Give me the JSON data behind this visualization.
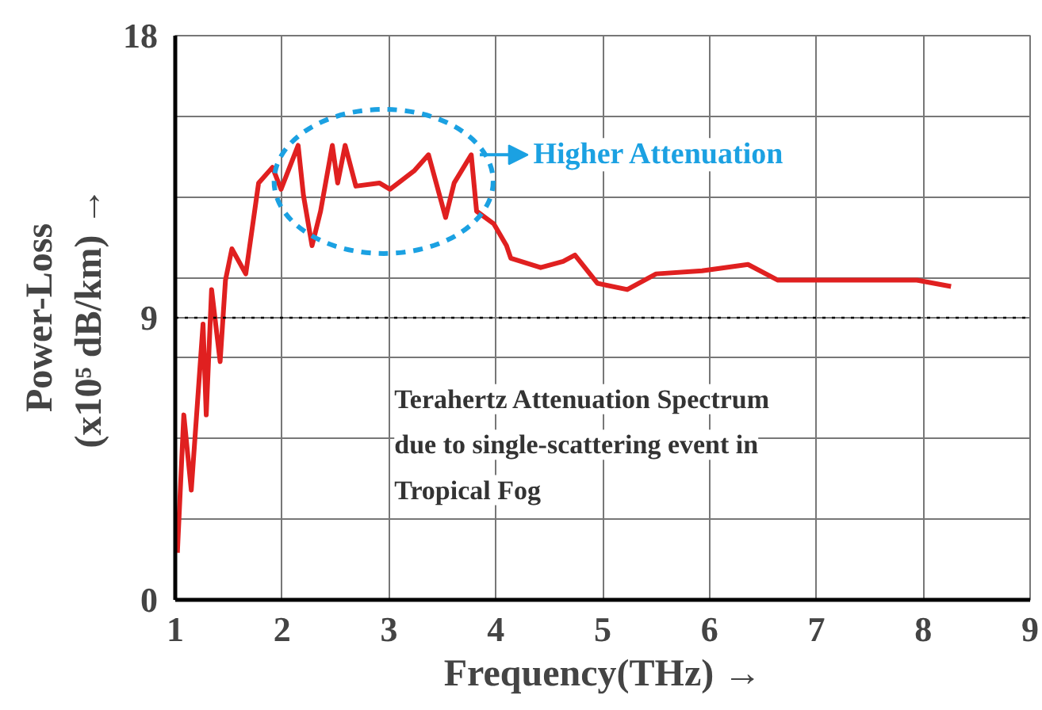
{
  "chart_data": {
    "type": "line",
    "xlabel": "Frequency(THz) →",
    "ylabel": "Power-Loss\n(x10⁵ dB/km) →",
    "xlim": [
      1,
      9
    ],
    "xticks": [
      1,
      2,
      3,
      4,
      5,
      6,
      7,
      8,
      9
    ],
    "ylim": [
      0,
      18
    ],
    "yticks": [
      0,
      {
        "value": 2.571,
        "label": null
      },
      {
        "value": 5.143,
        "label": null
      },
      {
        "value": 7.714,
        "label": null
      },
      9,
      {
        "value": 10.286,
        "label": null
      },
      {
        "value": 12.857,
        "label": null
      },
      {
        "value": 15.429,
        "label": null
      },
      18
    ],
    "grid": true,
    "marker": "none",
    "line_style": "solid",
    "series": [
      {
        "color": "#e02020",
        "x": [
          1.02,
          1.08,
          1.15,
          1.26,
          1.29,
          1.34,
          1.42,
          1.47,
          1.53,
          1.66,
          1.78,
          1.91,
          1.99,
          2.15,
          2.2,
          2.28,
          2.36,
          2.47,
          2.52,
          2.59,
          2.69,
          2.91,
          3.01,
          3.24,
          3.37,
          3.53,
          3.61,
          3.77,
          3.82,
          3.98,
          4.1,
          4.14,
          4.42,
          4.63,
          4.74,
          4.95,
          5.23,
          5.5,
          5.93,
          6.36,
          6.64,
          7.13,
          7.66,
          7.94,
          8.26
        ],
        "values": [
          1.5,
          5.9,
          3.5,
          8.8,
          5.9,
          9.9,
          7.6,
          10.2,
          11.2,
          10.4,
          13.3,
          13.8,
          13.1,
          14.5,
          12.9,
          11.3,
          12.4,
          14.5,
          13.3,
          14.5,
          13.2,
          13.3,
          13.1,
          13.7,
          14.2,
          12.2,
          13.3,
          14.2,
          12.4,
          12.0,
          11.3,
          10.9,
          10.6,
          10.8,
          11.0,
          10.1,
          9.9,
          10.4,
          10.5,
          10.7,
          10.2,
          10.2,
          10.2,
          10.2,
          10.0
        ]
      }
    ],
    "ref_lines": [
      {
        "axis": "y",
        "value": 9,
        "label": null,
        "color": "#000000",
        "line_style": "dotted"
      }
    ],
    "annotations": [
      "Higher Attenuation",
      "Terahertz Attenuation Spectrum\ndue to single-scattering event in\nTropical Fog"
    ]
  }
}
